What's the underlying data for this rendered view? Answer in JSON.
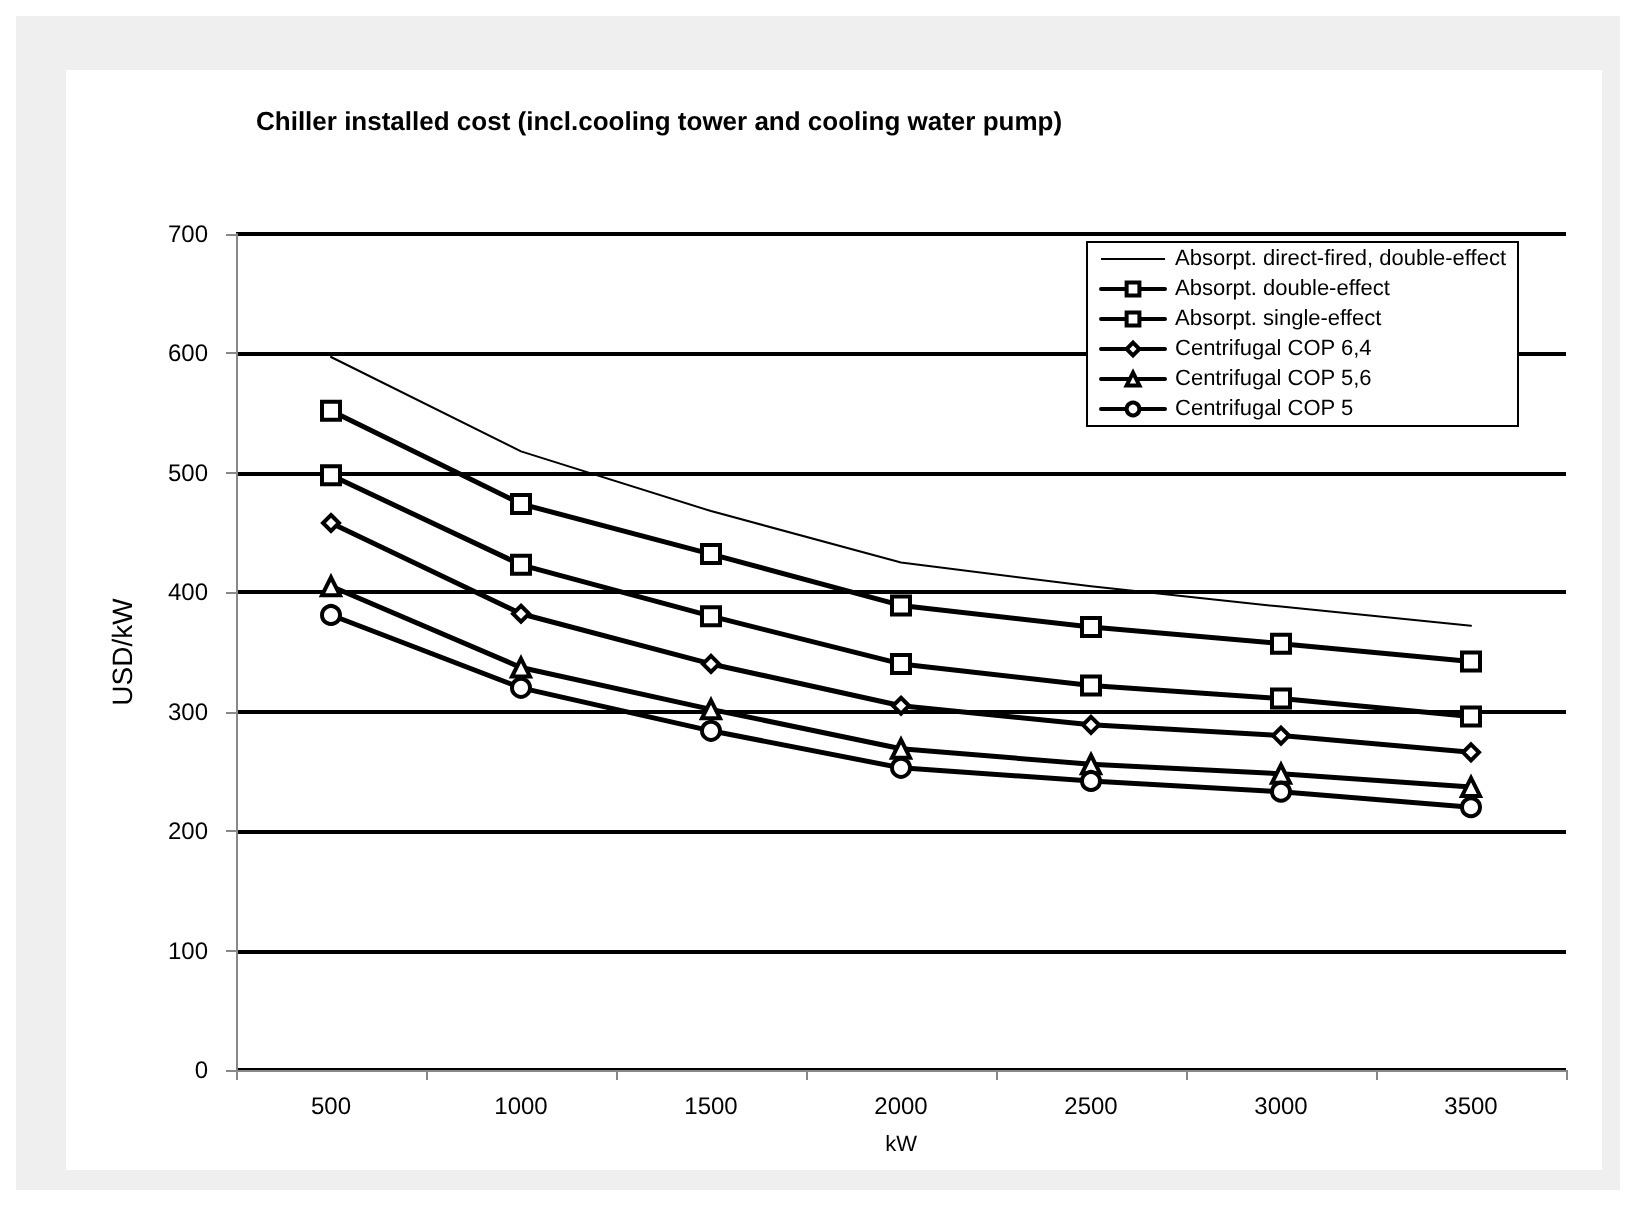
{
  "chart_data": {
    "type": "line",
    "title": "Chiller installed cost (incl.cooling tower and cooling water pump)",
    "xlabel": "kW",
    "ylabel": "USD/kW",
    "categories": [
      "500",
      "1000",
      "1500",
      "2000",
      "2500",
      "3000",
      "3500"
    ],
    "series": [
      {
        "name": "Absorpt. direct-fired, double-effect",
        "color": "#000000",
        "marker": "none",
        "values": [
          597,
          518,
          468,
          425,
          405,
          388,
          372
        ]
      },
      {
        "name": "Absorpt. double-effect",
        "color": "#000000",
        "marker": "square",
        "values": [
          552,
          474,
          432,
          389,
          371,
          357,
          342
        ]
      },
      {
        "name": "Absorpt. single-effect",
        "color": "#000000",
        "marker": "square",
        "values": [
          498,
          423,
          380,
          340,
          322,
          311,
          296
        ]
      },
      {
        "name": "Centrifugal COP 6,4",
        "color": "#000000",
        "marker": "diamond",
        "values": [
          458,
          382,
          340,
          305,
          289,
          280,
          266
        ]
      },
      {
        "name": "Centrifugal COP 5,6",
        "color": "#000000",
        "marker": "triangle",
        "values": [
          405,
          337,
          302,
          269,
          256,
          248,
          237
        ]
      },
      {
        "name": "Centrifugal COP 5",
        "color": "#000000",
        "marker": "circle",
        "values": [
          381,
          320,
          284,
          253,
          242,
          233,
          220
        ]
      }
    ],
    "ylim": [
      0,
      700
    ],
    "yticks": [
      0,
      100,
      200,
      300,
      400,
      500,
      600,
      700
    ],
    "grid": "y",
    "legend": "top right"
  }
}
